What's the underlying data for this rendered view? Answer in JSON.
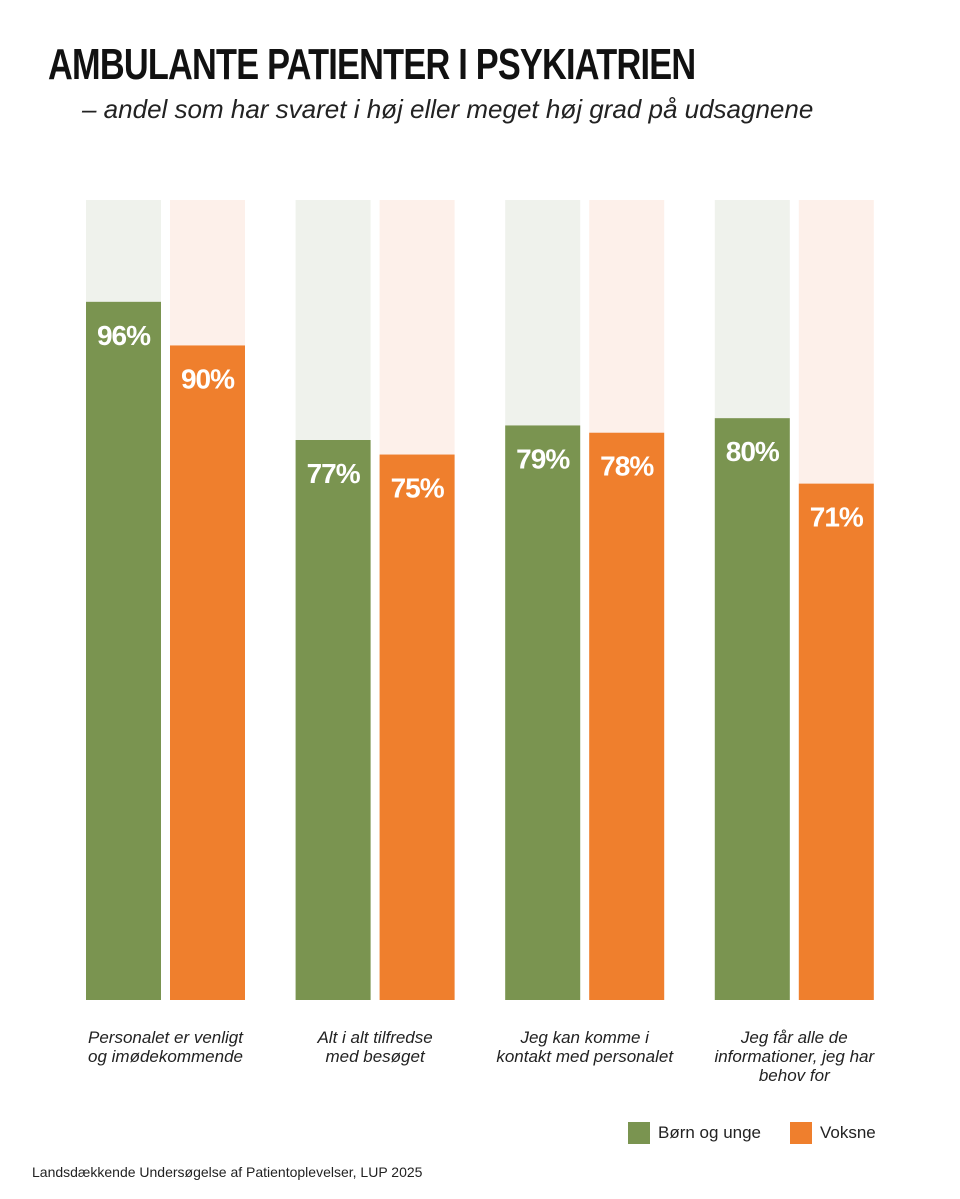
{
  "chart_data": {
    "type": "bar",
    "title": "AMBULANTE PATIENTER I PSYKIATRIEN",
    "subtitle": "– andel som har svaret i høj eller meget høj grad på udsagnene",
    "categories": [
      "Personalet er venligt\nog imødekommende",
      "Alt i alt tilfredse\nmed besøget",
      "Jeg kan komme i\nkontakt med personalet",
      "Jeg får alle de\ninformationer, jeg har\nbehov for"
    ],
    "series": [
      {
        "name": "Børn og unge",
        "color": "#7a9450",
        "background": "#eff2ec",
        "values": [
          96,
          77,
          79,
          80
        ],
        "value_labels": [
          "96%",
          "77%",
          "79%",
          "80%"
        ]
      },
      {
        "name": "Voksne",
        "color": "#ef7f2d",
        "background": "#fdf0ea",
        "values": [
          90,
          75,
          78,
          71
        ],
        "value_labels": [
          "90%",
          "75%",
          "78%",
          "71%"
        ]
      }
    ],
    "ylim": [
      0,
      110
    ],
    "source": "Landsdækkende Undersøgelse af Patientoplevelser, LUP 2025"
  }
}
